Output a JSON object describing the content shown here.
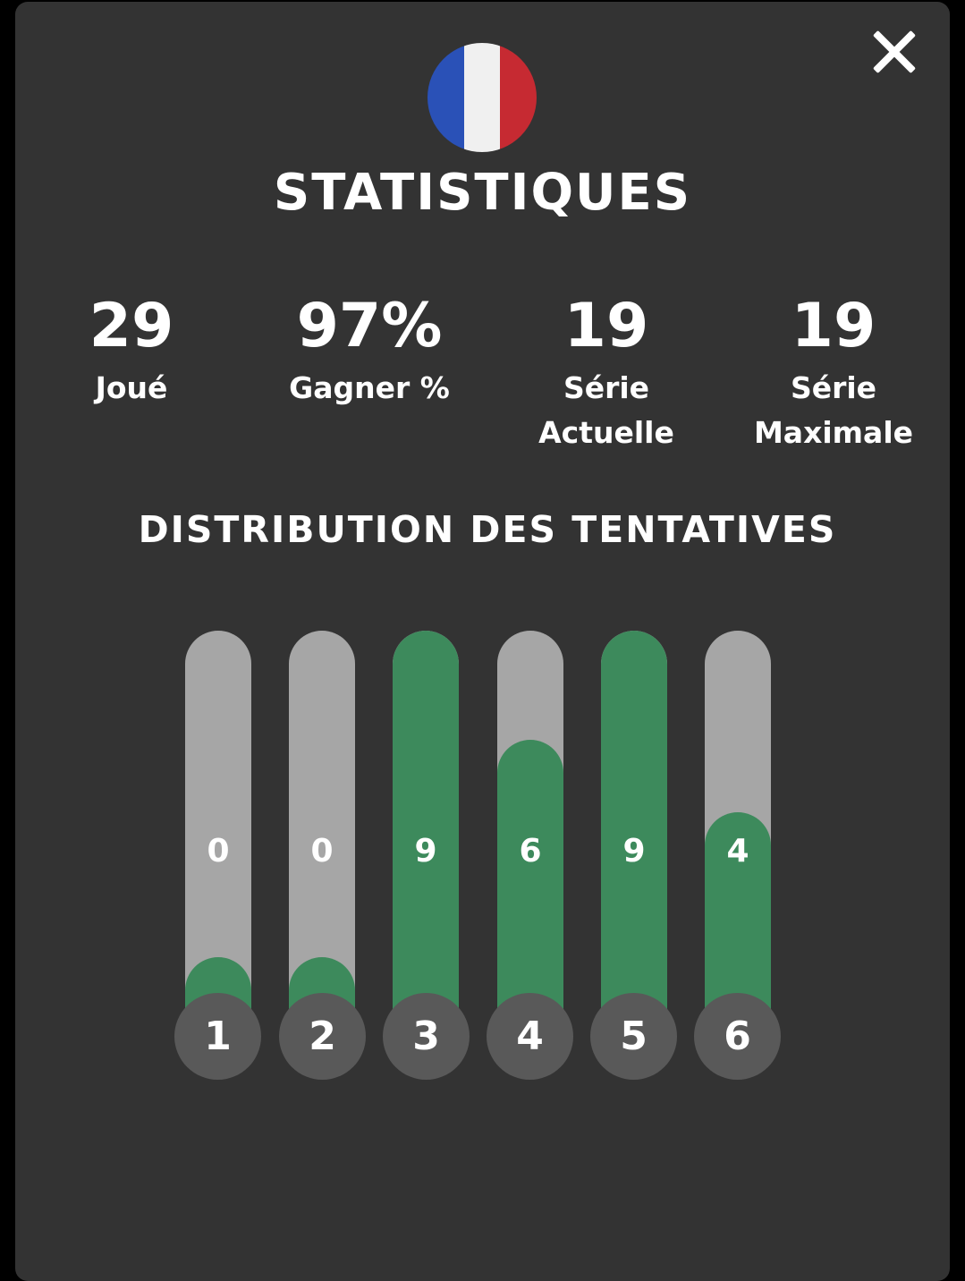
{
  "header": {
    "title": "STATISTIQUES",
    "flag_colors": [
      "#2a51b7",
      "#f0f0f0",
      "#c62a32"
    ],
    "close_icon": "close-icon"
  },
  "stats": [
    {
      "value": "29",
      "label": "Joué"
    },
    {
      "value": "97%",
      "label": "Gagner %"
    },
    {
      "value": "19",
      "label": "Série Actuelle"
    },
    {
      "value": "19",
      "label": "Série Maximale"
    }
  ],
  "distribution": {
    "title": "DISTRIBUTION DES TENTATIVES",
    "fill_color": "#3d8a5c",
    "track_color": "#a6a6a6",
    "max": 9,
    "items": [
      {
        "guess": "1",
        "count": "0",
        "value": 0
      },
      {
        "guess": "2",
        "count": "0",
        "value": 0
      },
      {
        "guess": "3",
        "count": "9",
        "value": 9
      },
      {
        "guess": "4",
        "count": "6",
        "value": 6
      },
      {
        "guess": "5",
        "count": "9",
        "value": 9
      },
      {
        "guess": "6",
        "count": "4",
        "value": 4
      }
    ]
  }
}
